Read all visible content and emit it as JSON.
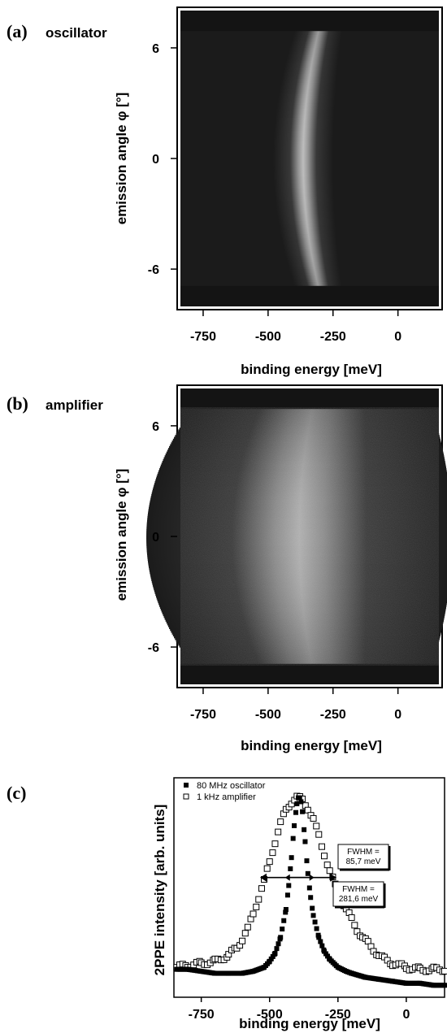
{
  "panels": {
    "a": {
      "letter": "(a)",
      "name": "oscillator"
    },
    "b": {
      "letter": "(b)",
      "name": "amplifier"
    },
    "c": {
      "letter": "(c)"
    }
  },
  "chart_data": [
    {
      "type": "heatmap",
      "panel": "(a) oscillator",
      "xlabel": "binding energy [meV]",
      "ylabel": "emission angle φ [°]",
      "xticks": [
        -750,
        -500,
        -250,
        0
      ],
      "xtick_labels": [
        "-750",
        "-500",
        "-250",
        "0"
      ],
      "yticks": [
        6,
        0,
        -6
      ],
      "ytick_labels": [
        "6",
        "0",
        "-6"
      ],
      "xlim": [
        -850,
        170
      ],
      "ylim": [
        -8.2,
        8.2
      ],
      "data_ylim": [
        -7,
        7
      ],
      "colormap": "grayscale",
      "background": "#1b1b1b",
      "band": {
        "center_energy_at_0deg": -365,
        "center_energy_at_edges": -305,
        "fwhm": 45
      },
      "grid": false
    },
    {
      "type": "heatmap",
      "panel": "(b) amplifier",
      "xlabel": "binding energy [meV]",
      "ylabel": "emission angle φ [°]",
      "xticks": [
        -750,
        -500,
        -250,
        0
      ],
      "xtick_labels": [
        "-750",
        "-500",
        "-250",
        "0"
      ],
      "yticks": [
        6,
        0,
        -6
      ],
      "ytick_labels": [
        "6",
        "0",
        "-6"
      ],
      "xlim": [
        -850,
        170
      ],
      "ylim": [
        -8.2,
        8.2
      ],
      "data_ylim": [
        -7,
        7
      ],
      "colormap": "grayscale",
      "background": "#1b1b1b",
      "band": {
        "center_energy_at_0deg": -380,
        "center_energy_at_edges": -330,
        "fwhm": 230
      },
      "grid": false
    },
    {
      "type": "scatter",
      "panel": "(c)",
      "xlabel": "binding energy [meV]",
      "ylabel": "2PPE intensity [arb. units]",
      "xticks": [
        -750,
        -500,
        -250,
        0
      ],
      "xtick_labels": [
        "-750",
        "-500",
        "-250",
        "0"
      ],
      "xlim": [
        -850,
        140
      ],
      "ylim": [
        0,
        1.1
      ],
      "legend_position": "top-left",
      "series": [
        {
          "name": "80 MHz oscillator",
          "marker": "filled-square",
          "color": "#000000",
          "center": -390,
          "fwhm": 85.7,
          "baseline": 0.1,
          "tail_slope": -8e-05,
          "x": [
            -840,
            -800,
            -750,
            -700,
            -650,
            -600,
            -560,
            -520,
            -500,
            -480,
            -460,
            -440,
            -430,
            -420,
            -410,
            -400,
            -395,
            -390,
            -385,
            -380,
            -370,
            -360,
            -350,
            -340,
            -320,
            -300,
            -280,
            -250,
            -220,
            -200,
            -150,
            -100,
            -50,
            0,
            50,
            100,
            140
          ],
          "y": [
            0.14,
            0.14,
            0.13,
            0.12,
            0.12,
            0.12,
            0.13,
            0.15,
            0.18,
            0.22,
            0.3,
            0.44,
            0.56,
            0.7,
            0.86,
            0.97,
            1.0,
            1.0,
            0.98,
            0.93,
            0.78,
            0.62,
            0.5,
            0.41,
            0.3,
            0.23,
            0.19,
            0.15,
            0.13,
            0.12,
            0.1,
            0.09,
            0.08,
            0.07,
            0.07,
            0.06,
            0.06
          ]
        },
        {
          "name": "1 kHz amplifier",
          "marker": "open-square",
          "color": "#000000",
          "center": -395,
          "fwhm": 281.6,
          "baseline": 0.14,
          "x": [
            -840,
            -800,
            -750,
            -700,
            -650,
            -620,
            -600,
            -580,
            -560,
            -540,
            -520,
            -500,
            -480,
            -460,
            -440,
            -420,
            -400,
            -380,
            -360,
            -340,
            -320,
            -300,
            -280,
            -260,
            -240,
            -220,
            -200,
            -180,
            -160,
            -140,
            -120,
            -100,
            -80,
            -50,
            0,
            50,
            100,
            140
          ],
          "y": [
            0.15,
            0.16,
            0.17,
            0.18,
            0.21,
            0.25,
            0.29,
            0.34,
            0.42,
            0.5,
            0.58,
            0.68,
            0.78,
            0.87,
            0.94,
            0.98,
            1.0,
            0.99,
            0.95,
            0.89,
            0.81,
            0.72,
            0.63,
            0.56,
            0.5,
            0.44,
            0.39,
            0.34,
            0.3,
            0.27,
            0.24,
            0.21,
            0.19,
            0.17,
            0.15,
            0.14,
            0.14,
            0.14
          ]
        }
      ],
      "annotations": [
        {
          "text_lines": [
            "FWHM =",
            "85,7 meV"
          ],
          "applies_to": "80 MHz oscillator"
        },
        {
          "text_lines": [
            "FWHM =",
            "281,6 meV"
          ],
          "applies_to": "1 kHz amplifier"
        }
      ],
      "arrow_span": [
        -535,
        -255
      ],
      "grid": false
    }
  ]
}
